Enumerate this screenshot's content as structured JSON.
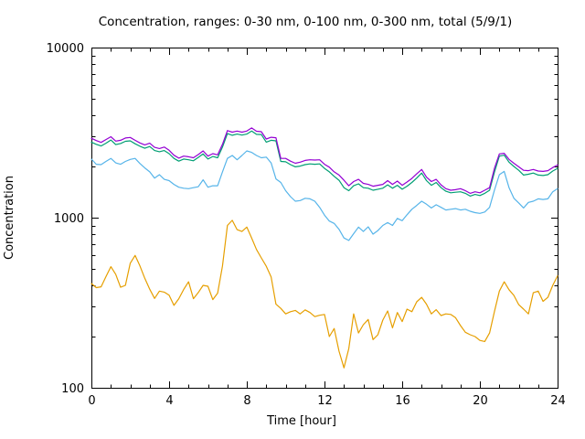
{
  "chart_data": {
    "type": "line",
    "title": "Concentration, ranges: 0-30 nm, 0-100 nm, 0-300 nm, total (5/9/1)",
    "xlabel": "Time [hour]",
    "ylabel": "Concentration",
    "x_range": [
      0,
      24
    ],
    "y_range": [
      100,
      10000
    ],
    "y_scale": "log",
    "grid": false,
    "legend": "none",
    "background": "#ffffff",
    "axis_color": "#000000",
    "x_major_ticks": [
      0,
      4,
      8,
      12,
      16,
      20,
      24
    ],
    "x_minor_step": 1,
    "y_major_ticks": [
      100,
      1000,
      10000
    ],
    "y_minor_per_decade": [
      2,
      3,
      4,
      5,
      6,
      7,
      8,
      9
    ],
    "x_step": 0.25,
    "series": [
      {
        "name": "0-30 nm",
        "color": "#E69F00",
        "values": [
          410,
          388,
          392,
          450,
          515,
          465,
          390,
          400,
          540,
          600,
          520,
          440,
          380,
          335,
          370,
          365,
          350,
          305,
          334,
          378,
          420,
          334,
          363,
          400,
          395,
          330,
          360,
          520,
          900,
          965,
          850,
          830,
          880,
          760,
          650,
          580,
          518,
          449,
          310,
          293,
          272,
          280,
          285,
          272,
          287,
          277,
          262,
          267,
          270,
          200,
          223,
          164,
          131,
          170,
          272,
          210,
          235,
          252,
          192,
          205,
          250,
          283,
          225,
          277,
          245,
          290,
          280,
          320,
          340,
          310,
          272,
          288,
          266,
          272,
          270,
          258,
          232,
          212,
          205,
          200,
          190,
          187,
          210,
          280,
          370,
          420,
          377,
          349,
          308,
          290,
          272,
          362,
          370,
          322,
          340,
          400,
          455
        ]
      },
      {
        "name": "0-100 nm",
        "color": "#56B4E9",
        "values": [
          2210,
          2060,
          2050,
          2140,
          2230,
          2100,
          2060,
          2140,
          2200,
          2230,
          2080,
          1960,
          1860,
          1710,
          1790,
          1680,
          1650,
          1570,
          1510,
          1490,
          1480,
          1500,
          1520,
          1670,
          1510,
          1540,
          1540,
          1860,
          2230,
          2320,
          2190,
          2320,
          2470,
          2420,
          2320,
          2250,
          2270,
          2100,
          1690,
          1610,
          1440,
          1330,
          1250,
          1260,
          1300,
          1290,
          1250,
          1150,
          1035,
          955,
          925,
          855,
          760,
          735,
          805,
          880,
          830,
          884,
          800,
          840,
          900,
          935,
          900,
          990,
          960,
          1040,
          1120,
          1180,
          1250,
          1200,
          1140,
          1190,
          1150,
          1110,
          1120,
          1130,
          1110,
          1120,
          1090,
          1070,
          1060,
          1080,
          1150,
          1450,
          1790,
          1870,
          1500,
          1300,
          1220,
          1140,
          1230,
          1250,
          1290,
          1280,
          1290,
          1420,
          1480
        ]
      },
      {
        "name": "0-300 nm",
        "color": "#009E73",
        "values": [
          2780,
          2700,
          2640,
          2740,
          2860,
          2690,
          2730,
          2810,
          2830,
          2720,
          2630,
          2560,
          2620,
          2480,
          2440,
          2480,
          2380,
          2230,
          2150,
          2210,
          2190,
          2160,
          2260,
          2370,
          2210,
          2290,
          2250,
          2600,
          3120,
          3050,
          3100,
          3060,
          3100,
          3230,
          3090,
          3080,
          2780,
          2850,
          2830,
          2140,
          2130,
          2050,
          1990,
          2010,
          2050,
          2070,
          2060,
          2070,
          1950,
          1860,
          1750,
          1660,
          1500,
          1440,
          1540,
          1580,
          1500,
          1490,
          1450,
          1470,
          1490,
          1560,
          1490,
          1550,
          1470,
          1530,
          1610,
          1710,
          1830,
          1650,
          1550,
          1610,
          1500,
          1430,
          1400,
          1410,
          1420,
          1390,
          1340,
          1370,
          1350,
          1390,
          1450,
          1850,
          2300,
          2330,
          2120,
          2000,
          1900,
          1780,
          1800,
          1830,
          1780,
          1770,
          1790,
          1880,
          1950
        ]
      },
      {
        "name": "total",
        "color": "#9400D3",
        "values": [
          2930,
          2840,
          2770,
          2880,
          2990,
          2820,
          2850,
          2940,
          2960,
          2850,
          2750,
          2680,
          2740,
          2590,
          2550,
          2600,
          2490,
          2330,
          2240,
          2300,
          2280,
          2250,
          2350,
          2470,
          2300,
          2380,
          2340,
          2700,
          3250,
          3180,
          3230,
          3180,
          3230,
          3370,
          3220,
          3200,
          2900,
          2970,
          2950,
          2230,
          2230,
          2150,
          2090,
          2120,
          2170,
          2190,
          2180,
          2190,
          2060,
          1980,
          1860,
          1780,
          1660,
          1540,
          1630,
          1680,
          1590,
          1570,
          1530,
          1550,
          1570,
          1650,
          1570,
          1640,
          1550,
          1620,
          1700,
          1810,
          1920,
          1730,
          1630,
          1680,
          1560,
          1480,
          1450,
          1460,
          1480,
          1440,
          1390,
          1420,
          1400,
          1450,
          1500,
          1950,
          2370,
          2390,
          2200,
          2090,
          1990,
          1900,
          1890,
          1920,
          1880,
          1870,
          1890,
          1970,
          2040
        ]
      }
    ]
  }
}
